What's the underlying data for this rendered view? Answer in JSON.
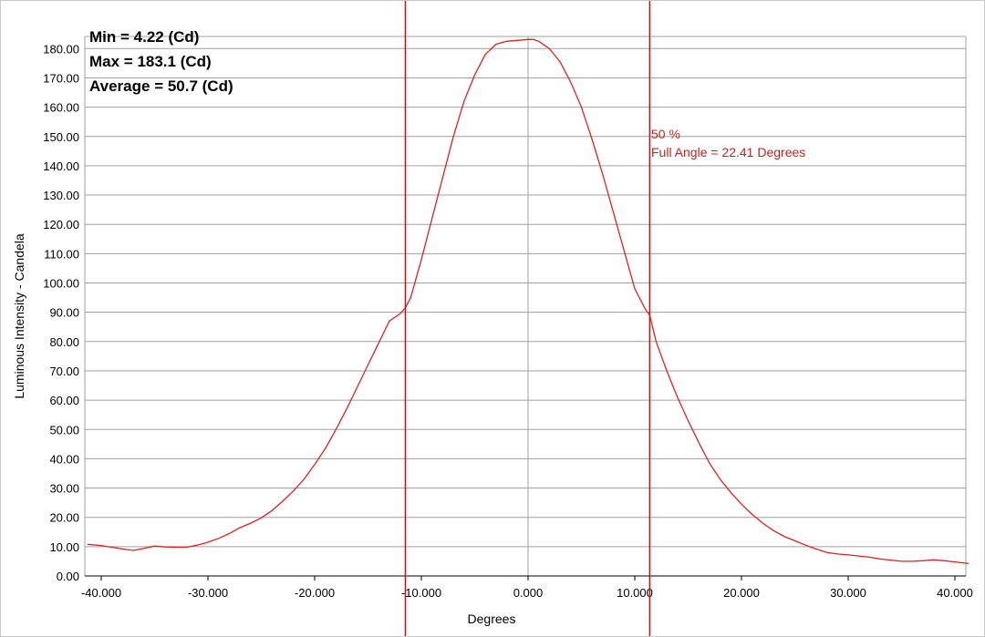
{
  "chart_data": {
    "type": "line",
    "xlabel": "Degrees",
    "ylabel": "Luminous Intensity - Candela",
    "xlim": [
      -41.3,
      41.3
    ],
    "ylim": [
      0,
      183.1
    ],
    "x_ticks": [
      -40,
      -30,
      -20,
      -10,
      0,
      10,
      20,
      30,
      40
    ],
    "x_tick_labels": [
      "-40.000",
      "-30.000",
      "-20.000",
      "-10.000",
      "0.000",
      "10.000",
      "20.000",
      "30.000",
      "40.000"
    ],
    "y_ticks": [
      0,
      10,
      20,
      30,
      40,
      50,
      60,
      70,
      80,
      90,
      100,
      110,
      120,
      130,
      140,
      150,
      160,
      170,
      180
    ],
    "y_tick_labels": [
      "0.00",
      "10.00",
      "20.00",
      "30.00",
      "40.00",
      "50.00",
      "60.00",
      "70.00",
      "80.00",
      "90.00",
      "100.00",
      "110.00",
      "120.00",
      "130.00",
      "140.00",
      "150.00",
      "160.00",
      "170.00",
      "180.00"
    ],
    "grid": true,
    "stats": {
      "min": "Min = 4.22 (Cd)",
      "max": "Max = 183.1 (Cd)",
      "average": "Average = 50.7 (Cd)"
    },
    "annotation": {
      "line1": "50 %",
      "line2": "Full Angle = 22.41 Degrees"
    },
    "vertical_markers": [
      -11.5,
      11.4
    ],
    "colors": {
      "curve": "#dd2222",
      "marker": "#cc1111",
      "grid": "#a0a0a0",
      "zero_line": "#a0a0a0"
    },
    "series": [
      {
        "x": [
          -41.3,
          -40,
          -39,
          -38,
          -37,
          -36,
          -35,
          -34,
          -33,
          -32,
          -31,
          -30,
          -29,
          -28,
          -27,
          -26,
          -25,
          -24,
          -23,
          -22,
          -21,
          -20,
          -19,
          -18,
          -17,
          -16,
          -15,
          -14,
          -13,
          -12,
          -11.5,
          -11,
          -10,
          -9,
          -8,
          -7,
          -6,
          -5,
          -4,
          -3,
          -2,
          -1,
          0,
          0.5,
          1,
          2,
          3,
          4,
          5,
          6,
          7,
          8,
          9,
          10,
          11,
          11.4,
          12,
          13,
          14,
          15,
          16,
          17,
          18,
          19,
          20,
          21,
          22,
          23,
          24,
          25,
          26,
          27,
          28,
          29,
          30,
          31,
          32,
          33,
          34,
          35,
          36,
          37,
          38,
          39,
          40,
          41.3
        ],
        "y": [
          10.8,
          10.4,
          9.8,
          9.2,
          8.7,
          9.4,
          10.2,
          9.9,
          9.8,
          9.8,
          10.5,
          11.5,
          12.8,
          14.5,
          16.5,
          18.0,
          19.8,
          22.3,
          25.5,
          29.0,
          33.0,
          38.0,
          43.5,
          50.0,
          57.0,
          64.5,
          72.0,
          79.5,
          87.0,
          89.5,
          91.5,
          95.0,
          108.0,
          122.0,
          136.0,
          150.0,
          162.0,
          171.0,
          178.0,
          181.5,
          182.5,
          182.8,
          183.1,
          183.1,
          182.5,
          180.0,
          175.5,
          168.5,
          160.0,
          149.0,
          137.0,
          124.0,
          111.0,
          98.0,
          91.0,
          89.0,
          80.0,
          70.0,
          61.0,
          53.0,
          45.5,
          38.5,
          33.0,
          28.5,
          24.5,
          21.0,
          18.0,
          15.5,
          13.5,
          12.0,
          10.5,
          9.2,
          8.0,
          7.5,
          7.2,
          6.8,
          6.4,
          5.8,
          5.4,
          5.0,
          5.0,
          5.2,
          5.5,
          5.2,
          4.8,
          4.22
        ]
      }
    ]
  }
}
